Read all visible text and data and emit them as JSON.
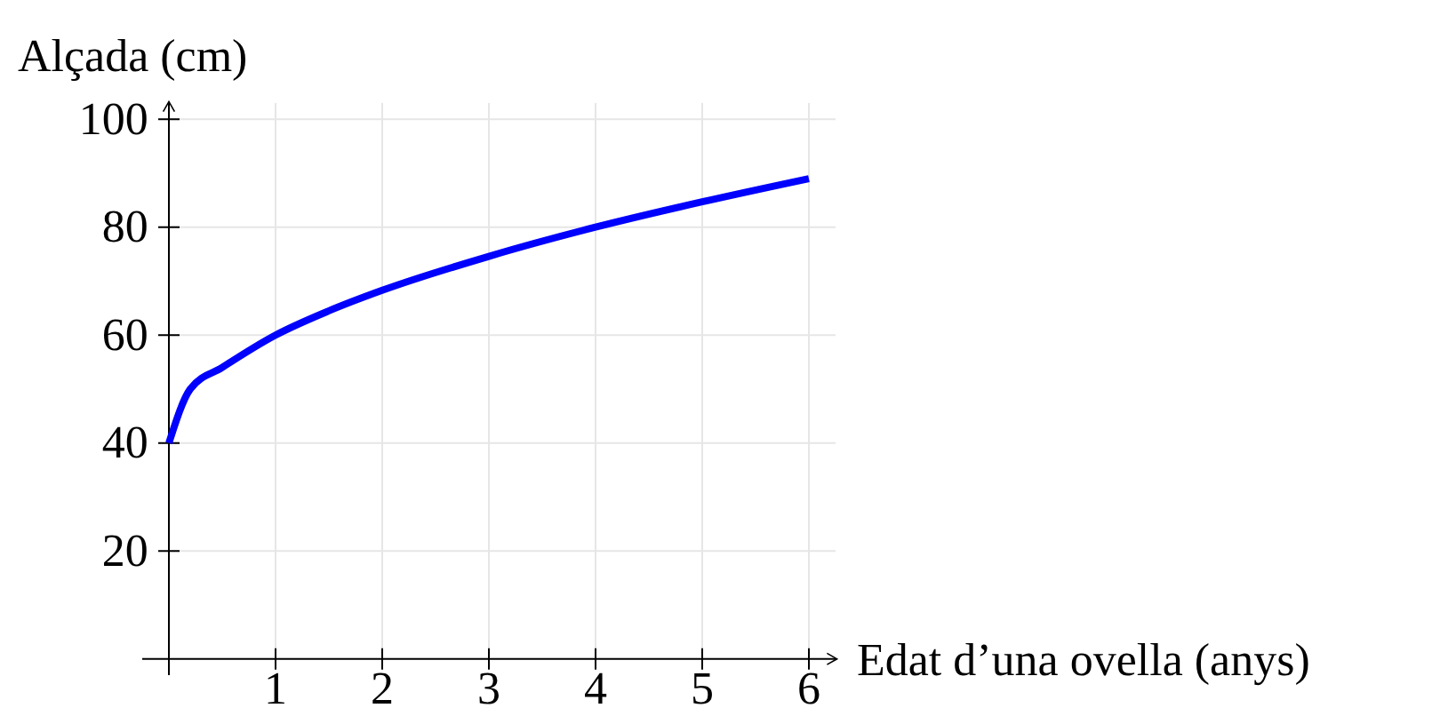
{
  "chart_data": {
    "type": "line",
    "xlabel": "Edat d’una ovella (anys)",
    "ylabel": "Alçada (cm)",
    "x": [
      0,
      0.2,
      0.5,
      1,
      1.5,
      2,
      3,
      4,
      5,
      6
    ],
    "series": [
      {
        "color": "#0000ff",
        "values": [
          40,
          50,
          54,
          60,
          64.5,
          68.3,
          74.6,
          80,
          84.7,
          89
        ]
      }
    ],
    "xlim": [
      -0.25,
      6.25
    ],
    "ylim": [
      -3,
      103
    ],
    "xticks": [
      1,
      2,
      3,
      4,
      5,
      6
    ],
    "yticks": [
      20,
      40,
      60,
      80,
      100
    ],
    "grid": true,
    "marker": "none",
    "line_style": "solid"
  }
}
